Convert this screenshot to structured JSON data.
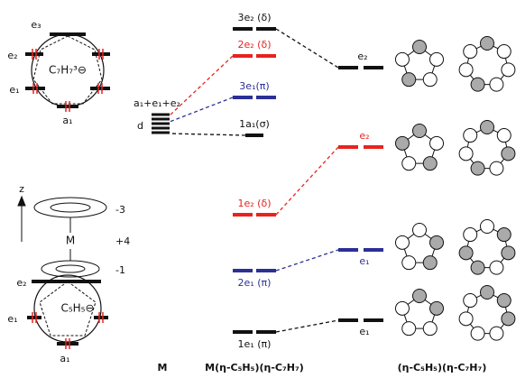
{
  "ligand_c7h7": {
    "name": "C₇H₇³⊖",
    "levels": [
      "e₃",
      "e₂",
      "e₁",
      "a₁"
    ]
  },
  "sandwich": {
    "axis": "z",
    "metal": "M",
    "charges": [
      "-3",
      "+4",
      "-1"
    ]
  },
  "ligand_c5h5": {
    "name": "C₅H₅⊖",
    "levels": [
      "e₂",
      "e₁",
      "a₁"
    ]
  },
  "metal": {
    "label": "M",
    "d_label": "d",
    "orbitals": "a₁+e₁+e₂"
  },
  "complex": {
    "label": "M(η-C₅H₅)(η-C₇H₇)",
    "levels": [
      "3e₂ (δ)",
      "2e₂ (δ)",
      "3e₁(π)",
      "1a₁(σ)",
      "1e₂ (δ)",
      "2e₁ (π)",
      "1e₁ (π)"
    ]
  },
  "ligands": {
    "label": "(η-C₅H₅)(η-C₇H₇)",
    "levels": [
      "e₂",
      "e₂",
      "e₁",
      "e₁"
    ]
  }
}
